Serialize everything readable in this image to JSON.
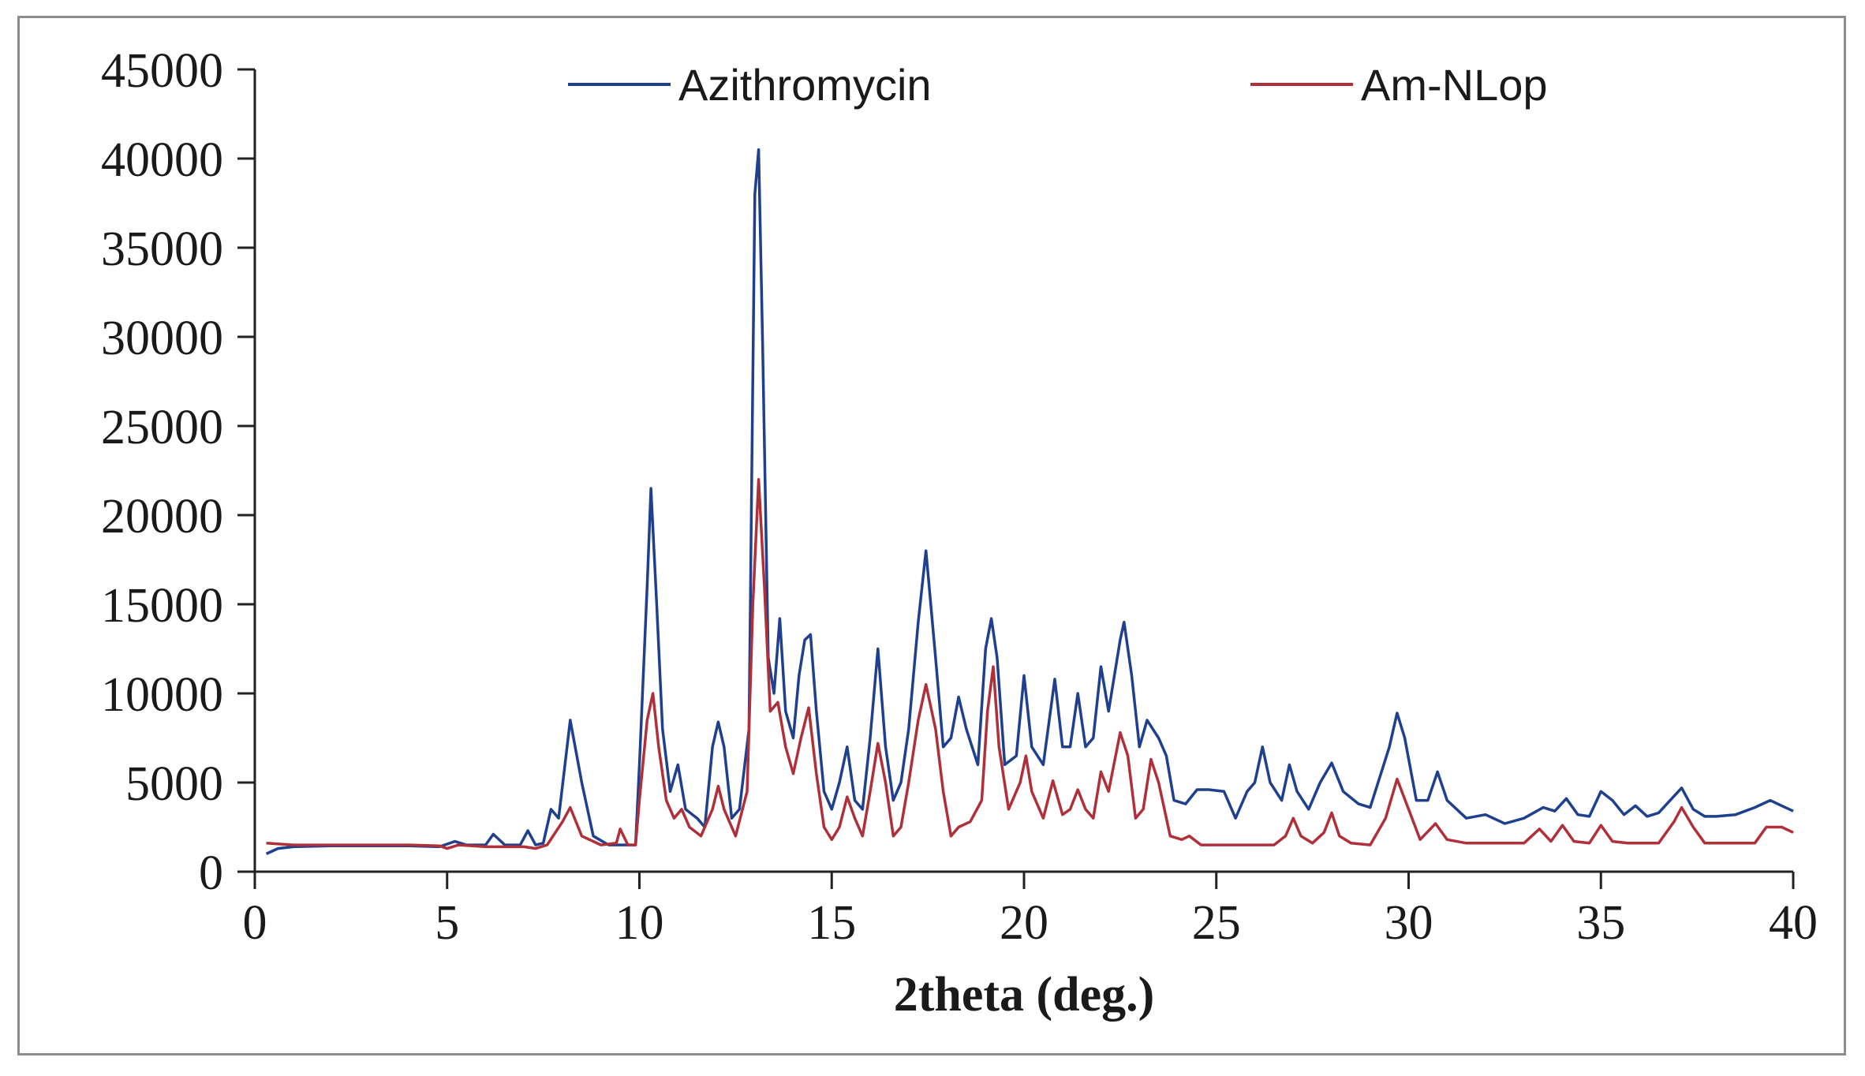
{
  "chart_data": {
    "type": "line",
    "title": "",
    "xlabel": "2theta (deg.)",
    "ylabel": "",
    "xlim": [
      0,
      40
    ],
    "ylim": [
      0,
      45000
    ],
    "x_ticks": [
      "0",
      "5",
      "10",
      "15",
      "20",
      "25",
      "30",
      "35",
      "40"
    ],
    "y_ticks": [
      "0",
      "5000",
      "10000",
      "15000",
      "20000",
      "25000",
      "30000",
      "35000",
      "40000",
      "45000"
    ],
    "grid": false,
    "legend_position": "top",
    "series": [
      {
        "name": "Azithromycin",
        "color": "#1f3f8f",
        "points": [
          [
            0.3,
            1000
          ],
          [
            0.6,
            1300
          ],
          [
            1,
            1400
          ],
          [
            2,
            1450
          ],
          [
            3,
            1450
          ],
          [
            4,
            1450
          ],
          [
            4.8,
            1400
          ],
          [
            5.2,
            1700
          ],
          [
            5.5,
            1500
          ],
          [
            6,
            1500
          ],
          [
            6.2,
            2100
          ],
          [
            6.5,
            1500
          ],
          [
            6.9,
            1500
          ],
          [
            7.1,
            2300
          ],
          [
            7.3,
            1500
          ],
          [
            7.5,
            1600
          ],
          [
            7.7,
            3500
          ],
          [
            7.9,
            3000
          ],
          [
            8.2,
            8500
          ],
          [
            8.5,
            5000
          ],
          [
            8.8,
            2000
          ],
          [
            9.2,
            1500
          ],
          [
            9.5,
            1500
          ],
          [
            9.9,
            1500
          ],
          [
            10.0,
            6000
          ],
          [
            10.2,
            16000
          ],
          [
            10.3,
            21500
          ],
          [
            10.45,
            15000
          ],
          [
            10.6,
            8000
          ],
          [
            10.8,
            4500
          ],
          [
            11.0,
            6000
          ],
          [
            11.2,
            3500
          ],
          [
            11.5,
            3000
          ],
          [
            11.7,
            2500
          ],
          [
            11.9,
            7000
          ],
          [
            12.05,
            8400
          ],
          [
            12.2,
            7000
          ],
          [
            12.4,
            3000
          ],
          [
            12.6,
            3500
          ],
          [
            12.85,
            8000
          ],
          [
            13.0,
            38000
          ],
          [
            13.1,
            40500
          ],
          [
            13.2,
            30000
          ],
          [
            13.35,
            12000
          ],
          [
            13.5,
            10000
          ],
          [
            13.65,
            14200
          ],
          [
            13.8,
            9000
          ],
          [
            14.0,
            7500
          ],
          [
            14.15,
            11000
          ],
          [
            14.3,
            13000
          ],
          [
            14.45,
            13300
          ],
          [
            14.6,
            9000
          ],
          [
            14.8,
            4500
          ],
          [
            15.0,
            3500
          ],
          [
            15.2,
            5000
          ],
          [
            15.4,
            7000
          ],
          [
            15.6,
            4000
          ],
          [
            15.8,
            3500
          ],
          [
            16.0,
            7500
          ],
          [
            16.2,
            12500
          ],
          [
            16.4,
            7000
          ],
          [
            16.6,
            4000
          ],
          [
            16.8,
            5000
          ],
          [
            17.0,
            8000
          ],
          [
            17.25,
            14000
          ],
          [
            17.45,
            18000
          ],
          [
            17.7,
            12000
          ],
          [
            17.9,
            7000
          ],
          [
            18.1,
            7500
          ],
          [
            18.3,
            9800
          ],
          [
            18.5,
            8000
          ],
          [
            18.8,
            6000
          ],
          [
            19.0,
            12500
          ],
          [
            19.15,
            14200
          ],
          [
            19.3,
            12000
          ],
          [
            19.5,
            6000
          ],
          [
            19.8,
            6500
          ],
          [
            20.0,
            11000
          ],
          [
            20.2,
            7000
          ],
          [
            20.5,
            6000
          ],
          [
            20.8,
            10800
          ],
          [
            21.0,
            7000
          ],
          [
            21.2,
            7000
          ],
          [
            21.4,
            10000
          ],
          [
            21.6,
            7000
          ],
          [
            21.8,
            7500
          ],
          [
            22.0,
            11500
          ],
          [
            22.2,
            9000
          ],
          [
            22.5,
            13000
          ],
          [
            22.6,
            14000
          ],
          [
            22.8,
            11000
          ],
          [
            23.0,
            7000
          ],
          [
            23.2,
            8500
          ],
          [
            23.5,
            7500
          ],
          [
            23.7,
            6500
          ],
          [
            23.9,
            4000
          ],
          [
            24.2,
            3800
          ],
          [
            24.5,
            4600
          ],
          [
            24.8,
            4600
          ],
          [
            25.2,
            4500
          ],
          [
            25.5,
            3000
          ],
          [
            25.8,
            4500
          ],
          [
            26.0,
            5000
          ],
          [
            26.2,
            7000
          ],
          [
            26.4,
            5000
          ],
          [
            26.7,
            4000
          ],
          [
            26.9,
            6000
          ],
          [
            27.1,
            4500
          ],
          [
            27.4,
            3500
          ],
          [
            27.7,
            5000
          ],
          [
            28.0,
            6100
          ],
          [
            28.3,
            4500
          ],
          [
            28.7,
            3800
          ],
          [
            29.0,
            3600
          ],
          [
            29.5,
            7000
          ],
          [
            29.7,
            8900
          ],
          [
            29.9,
            7500
          ],
          [
            30.2,
            4000
          ],
          [
            30.5,
            4000
          ],
          [
            30.75,
            5600
          ],
          [
            31.0,
            4000
          ],
          [
            31.5,
            3000
          ],
          [
            32.0,
            3200
          ],
          [
            32.5,
            2700
          ],
          [
            33.0,
            3000
          ],
          [
            33.5,
            3600
          ],
          [
            33.8,
            3400
          ],
          [
            34.1,
            4100
          ],
          [
            34.4,
            3200
          ],
          [
            34.7,
            3100
          ],
          [
            35.0,
            4500
          ],
          [
            35.3,
            4000
          ],
          [
            35.6,
            3200
          ],
          [
            35.9,
            3700
          ],
          [
            36.2,
            3100
          ],
          [
            36.5,
            3300
          ],
          [
            36.8,
            4000
          ],
          [
            37.1,
            4700
          ],
          [
            37.4,
            3500
          ],
          [
            37.7,
            3100
          ],
          [
            38.0,
            3100
          ],
          [
            38.5,
            3200
          ],
          [
            39.0,
            3600
          ],
          [
            39.4,
            4000
          ],
          [
            39.7,
            3700
          ],
          [
            40.0,
            3400
          ]
        ]
      },
      {
        "name": "Am-NLop",
        "color": "#b0303a",
        "points": [
          [
            0.3,
            1600
          ],
          [
            1,
            1500
          ],
          [
            2,
            1500
          ],
          [
            3,
            1500
          ],
          [
            4,
            1500
          ],
          [
            4.8,
            1450
          ],
          [
            5.0,
            1300
          ],
          [
            5.3,
            1500
          ],
          [
            6,
            1400
          ],
          [
            7,
            1400
          ],
          [
            7.3,
            1300
          ],
          [
            7.6,
            1500
          ],
          [
            8.0,
            2800
          ],
          [
            8.2,
            3600
          ],
          [
            8.5,
            2000
          ],
          [
            9.0,
            1500
          ],
          [
            9.4,
            1600
          ],
          [
            9.5,
            2400
          ],
          [
            9.7,
            1500
          ],
          [
            9.9,
            1500
          ],
          [
            10.0,
            4000
          ],
          [
            10.2,
            8500
          ],
          [
            10.35,
            10000
          ],
          [
            10.5,
            7000
          ],
          [
            10.7,
            4000
          ],
          [
            10.9,
            3000
          ],
          [
            11.1,
            3500
          ],
          [
            11.3,
            2500
          ],
          [
            11.6,
            2000
          ],
          [
            11.9,
            3500
          ],
          [
            12.05,
            4800
          ],
          [
            12.2,
            3500
          ],
          [
            12.5,
            2000
          ],
          [
            12.8,
            4500
          ],
          [
            12.95,
            15000
          ],
          [
            13.1,
            22000
          ],
          [
            13.25,
            16000
          ],
          [
            13.4,
            9000
          ],
          [
            13.6,
            9500
          ],
          [
            13.8,
            7000
          ],
          [
            14.0,
            5500
          ],
          [
            14.2,
            7500
          ],
          [
            14.4,
            9200
          ],
          [
            14.6,
            5500
          ],
          [
            14.8,
            2500
          ],
          [
            15.0,
            1800
          ],
          [
            15.2,
            2500
          ],
          [
            15.4,
            4200
          ],
          [
            15.6,
            3000
          ],
          [
            15.8,
            2000
          ],
          [
            16.0,
            4500
          ],
          [
            16.2,
            7200
          ],
          [
            16.4,
            5000
          ],
          [
            16.6,
            2000
          ],
          [
            16.8,
            2500
          ],
          [
            17.0,
            5000
          ],
          [
            17.25,
            8500
          ],
          [
            17.45,
            10500
          ],
          [
            17.7,
            8000
          ],
          [
            17.9,
            4500
          ],
          [
            18.1,
            2000
          ],
          [
            18.3,
            2500
          ],
          [
            18.6,
            2800
          ],
          [
            18.9,
            4000
          ],
          [
            19.05,
            9000
          ],
          [
            19.2,
            11500
          ],
          [
            19.35,
            7000
          ],
          [
            19.6,
            3500
          ],
          [
            19.9,
            5000
          ],
          [
            20.05,
            6500
          ],
          [
            20.2,
            4500
          ],
          [
            20.5,
            3000
          ],
          [
            20.75,
            5100
          ],
          [
            21.0,
            3200
          ],
          [
            21.2,
            3500
          ],
          [
            21.4,
            4600
          ],
          [
            21.6,
            3500
          ],
          [
            21.8,
            3000
          ],
          [
            22.0,
            5600
          ],
          [
            22.2,
            4500
          ],
          [
            22.5,
            7800
          ],
          [
            22.7,
            6500
          ],
          [
            22.9,
            3000
          ],
          [
            23.1,
            3500
          ],
          [
            23.3,
            6300
          ],
          [
            23.5,
            5000
          ],
          [
            23.8,
            2000
          ],
          [
            24.1,
            1800
          ],
          [
            24.3,
            2000
          ],
          [
            24.6,
            1500
          ],
          [
            25.0,
            1500
          ],
          [
            25.5,
            1500
          ],
          [
            26.0,
            1500
          ],
          [
            26.5,
            1500
          ],
          [
            26.8,
            2000
          ],
          [
            27.0,
            3000
          ],
          [
            27.2,
            2000
          ],
          [
            27.5,
            1600
          ],
          [
            27.8,
            2200
          ],
          [
            28.0,
            3300
          ],
          [
            28.2,
            2000
          ],
          [
            28.5,
            1600
          ],
          [
            29.0,
            1500
          ],
          [
            29.4,
            3000
          ],
          [
            29.7,
            5200
          ],
          [
            30.0,
            3500
          ],
          [
            30.3,
            1800
          ],
          [
            30.7,
            2700
          ],
          [
            31.0,
            1800
          ],
          [
            31.5,
            1600
          ],
          [
            32.0,
            1600
          ],
          [
            33.0,
            1600
          ],
          [
            33.4,
            2400
          ],
          [
            33.7,
            1700
          ],
          [
            34.0,
            2600
          ],
          [
            34.3,
            1700
          ],
          [
            34.7,
            1600
          ],
          [
            35.0,
            2600
          ],
          [
            35.3,
            1700
          ],
          [
            35.7,
            1600
          ],
          [
            36.0,
            1600
          ],
          [
            36.5,
            1600
          ],
          [
            36.9,
            2800
          ],
          [
            37.1,
            3600
          ],
          [
            37.4,
            2500
          ],
          [
            37.7,
            1600
          ],
          [
            38.0,
            1600
          ],
          [
            38.5,
            1600
          ],
          [
            39.0,
            1600
          ],
          [
            39.3,
            2500
          ],
          [
            39.7,
            2500
          ],
          [
            40.0,
            2200
          ]
        ]
      }
    ]
  }
}
